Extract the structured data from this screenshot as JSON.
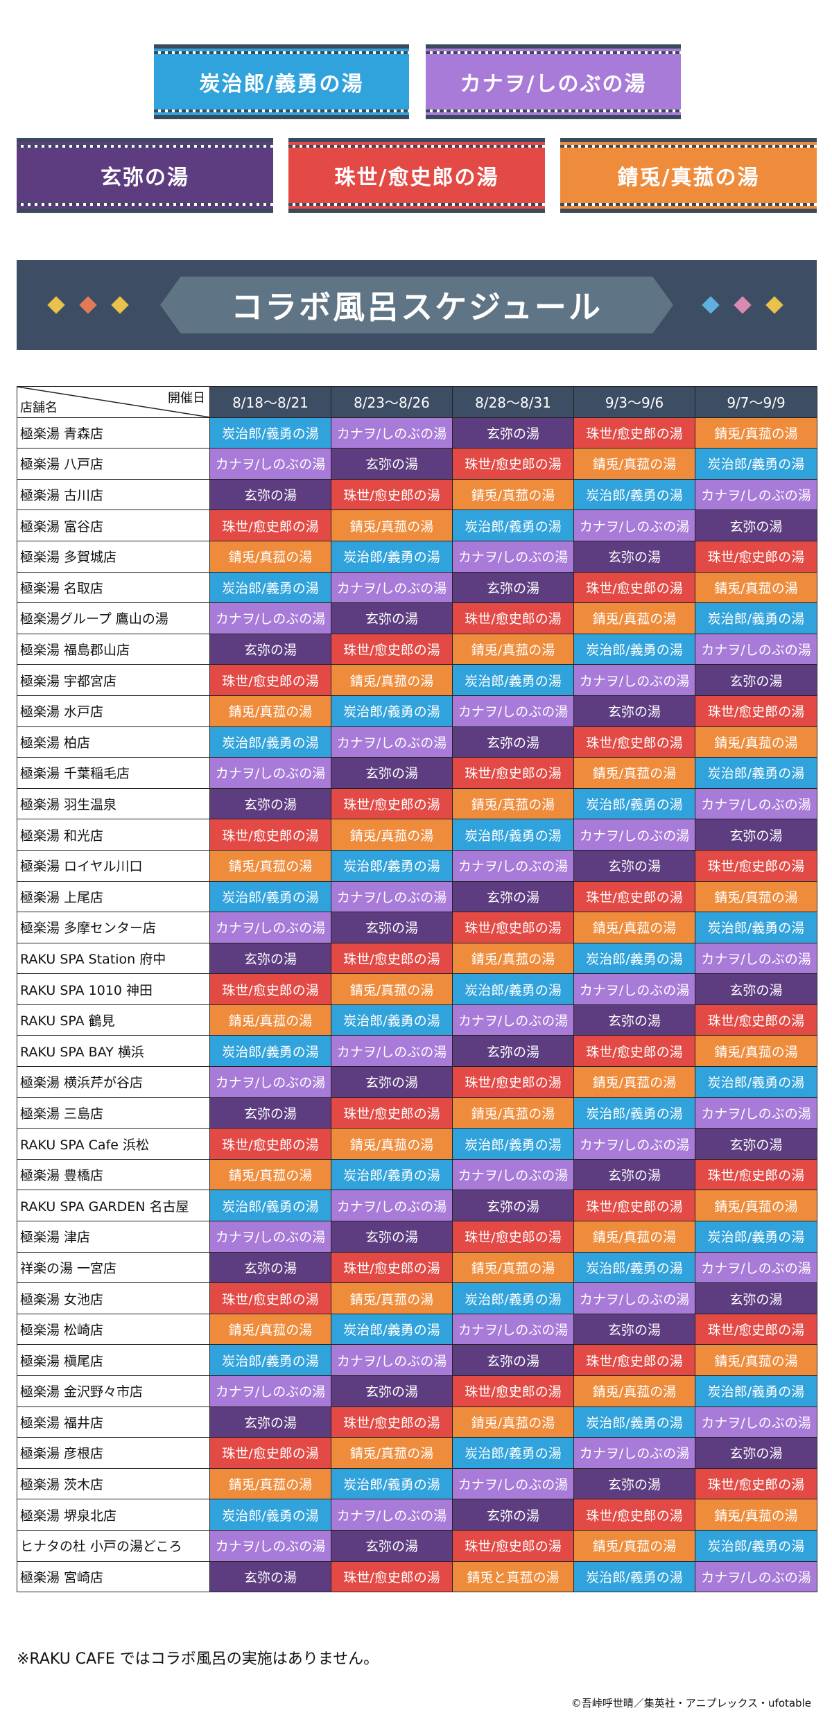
{
  "legend": [
    {
      "key": "tan",
      "label": "炭治郎/義勇の湯",
      "color": "#31a3dc"
    },
    {
      "key": "kan",
      "label": "カナヲ/しのぶの湯",
      "color": "#a87bd9"
    },
    {
      "key": "gen",
      "label": "玄弥の湯",
      "color": "#5d3d80"
    },
    {
      "key": "tam",
      "label": "珠世/愈史郎の湯",
      "color": "#e34a45"
    },
    {
      "key": "sab",
      "label": "錆兎/真菰の湯",
      "color": "#ef8c3b"
    }
  ],
  "banner_title": "コラボ風呂スケジュール",
  "table": {
    "corner_date": "開催日",
    "corner_store": "店舗名",
    "periods": [
      "8/18〜8/21",
      "8/23〜8/26",
      "8/28〜8/31",
      "9/3〜9/6",
      "9/7〜9/9"
    ],
    "rows": [
      {
        "store": "極楽湯 青森店",
        "cells": [
          "tan",
          "kan",
          "gen",
          "tam",
          "sab"
        ]
      },
      {
        "store": "極楽湯 八戸店",
        "cells": [
          "kan",
          "gen",
          "tam",
          "sab",
          "tan"
        ]
      },
      {
        "store": "極楽湯 古川店",
        "cells": [
          "gen",
          "tam",
          "sab",
          "tan",
          "kan"
        ]
      },
      {
        "store": "極楽湯 富谷店",
        "cells": [
          "tam",
          "sab",
          "tan",
          "kan",
          "gen"
        ]
      },
      {
        "store": "極楽湯 多賀城店",
        "cells": [
          "sab",
          "tan",
          "kan",
          "gen",
          "tam"
        ]
      },
      {
        "store": "極楽湯 名取店",
        "cells": [
          "tan",
          "kan",
          "gen",
          "tam",
          "sab"
        ]
      },
      {
        "store": "極楽湯グループ 鷹山の湯",
        "cells": [
          "kan",
          "gen",
          "tam",
          "sab",
          "tan"
        ]
      },
      {
        "store": "極楽湯 福島郡山店",
        "cells": [
          "gen",
          "tam",
          "sab",
          "tan",
          "kan"
        ]
      },
      {
        "store": "極楽湯 宇都宮店",
        "cells": [
          "tam",
          "sab",
          "tan",
          "kan",
          "gen"
        ]
      },
      {
        "store": "極楽湯 水戸店",
        "cells": [
          "sab",
          "tan",
          "kan",
          "gen",
          "tam"
        ]
      },
      {
        "store": "極楽湯 柏店",
        "cells": [
          "tan",
          "kan",
          "gen",
          "tam",
          "sab"
        ]
      },
      {
        "store": "極楽湯 千葉稲毛店",
        "cells": [
          "kan",
          "gen",
          "tam",
          "sab",
          "tan"
        ]
      },
      {
        "store": "極楽湯 羽生温泉",
        "cells": [
          "gen",
          "tam",
          "sab",
          "tan",
          "kan"
        ]
      },
      {
        "store": "極楽湯 和光店",
        "cells": [
          "tam",
          "sab",
          "tan",
          "kan",
          "gen"
        ]
      },
      {
        "store": "極楽湯 ロイヤル川口",
        "cells": [
          "sab",
          "tan",
          "kan",
          "gen",
          "tam"
        ]
      },
      {
        "store": "極楽湯 上尾店",
        "cells": [
          "tan",
          "kan",
          "gen",
          "tam",
          "sab"
        ]
      },
      {
        "store": "極楽湯 多摩センター店",
        "cells": [
          "kan",
          "gen",
          "tam",
          "sab",
          "tan"
        ]
      },
      {
        "store": "RAKU SPA Station 府中",
        "cells": [
          "gen",
          "tam",
          "sab",
          "tan",
          "kan"
        ]
      },
      {
        "store": "RAKU SPA 1010 神田",
        "cells": [
          "tam",
          "sab",
          "tan",
          "kan",
          "gen"
        ]
      },
      {
        "store": "RAKU SPA 鶴見",
        "cells": [
          "sab",
          "tan",
          "kan",
          "gen",
          "tam"
        ]
      },
      {
        "store": "RAKU SPA BAY 横浜",
        "cells": [
          "tan",
          "kan",
          "gen",
          "tam",
          "sab"
        ]
      },
      {
        "store": "極楽湯 横浜芹が谷店",
        "cells": [
          "kan",
          "gen",
          "tam",
          "sab",
          "tan"
        ]
      },
      {
        "store": "極楽湯 三島店",
        "cells": [
          "gen",
          "tam",
          "sab",
          "tan",
          "kan"
        ]
      },
      {
        "store": "RAKU SPA Cafe 浜松",
        "cells": [
          "tam",
          "sab",
          "tan",
          "kan",
          "gen"
        ]
      },
      {
        "store": "極楽湯 豊橋店",
        "cells": [
          "sab",
          "tan",
          "kan",
          "gen",
          "tam"
        ]
      },
      {
        "store": "RAKU SPA GARDEN 名古屋",
        "cells": [
          "tan",
          "kan",
          "gen",
          "tam",
          "sab"
        ]
      },
      {
        "store": "極楽湯 津店",
        "cells": [
          "kan",
          "gen",
          "tam",
          "sab",
          "tan"
        ]
      },
      {
        "store": "祥楽の湯 一宮店",
        "cells": [
          "gen",
          "tam",
          "sab",
          "tan",
          "kan"
        ]
      },
      {
        "store": "極楽湯 女池店",
        "cells": [
          "tam",
          "sab",
          "tan",
          "kan",
          "gen"
        ]
      },
      {
        "store": "極楽湯 松崎店",
        "cells": [
          "sab",
          "tan",
          "kan",
          "gen",
          "tam"
        ]
      },
      {
        "store": "極楽湯 槇尾店",
        "cells": [
          "tan",
          "kan",
          "gen",
          "tam",
          "sab"
        ]
      },
      {
        "store": "極楽湯 金沢野々市店",
        "cells": [
          "kan",
          "gen",
          "tam",
          "sab",
          "tan"
        ]
      },
      {
        "store": "極楽湯 福井店",
        "cells": [
          "gen",
          "tam",
          "sab",
          "tan",
          "kan"
        ]
      },
      {
        "store": "極楽湯 彦根店",
        "cells": [
          "tam",
          "sab",
          "tan",
          "kan",
          "gen"
        ]
      },
      {
        "store": "極楽湯 茨木店",
        "cells": [
          "sab",
          "tan",
          "kan",
          "gen",
          "tam"
        ]
      },
      {
        "store": "極楽湯 堺泉北店",
        "cells": [
          "tan",
          "kan",
          "gen",
          "tam",
          "sab"
        ]
      },
      {
        "store": "ヒナタの杜 小戸の湯どころ",
        "cells": [
          "kan",
          "gen",
          "tam",
          "sab",
          "tan"
        ]
      },
      {
        "store": "極楽湯 宮崎店",
        "cells": [
          "gen",
          "tam",
          "sab2",
          "tan",
          "kan"
        ]
      }
    ],
    "special_labels": {
      "sab2": "錆兎と真菰の湯"
    }
  },
  "note": "※RAKU CAFE ではコラボ風呂の実施はありません。",
  "copyright": "©吾峠呼世晴／集英社・アニプレックス・ufotable"
}
